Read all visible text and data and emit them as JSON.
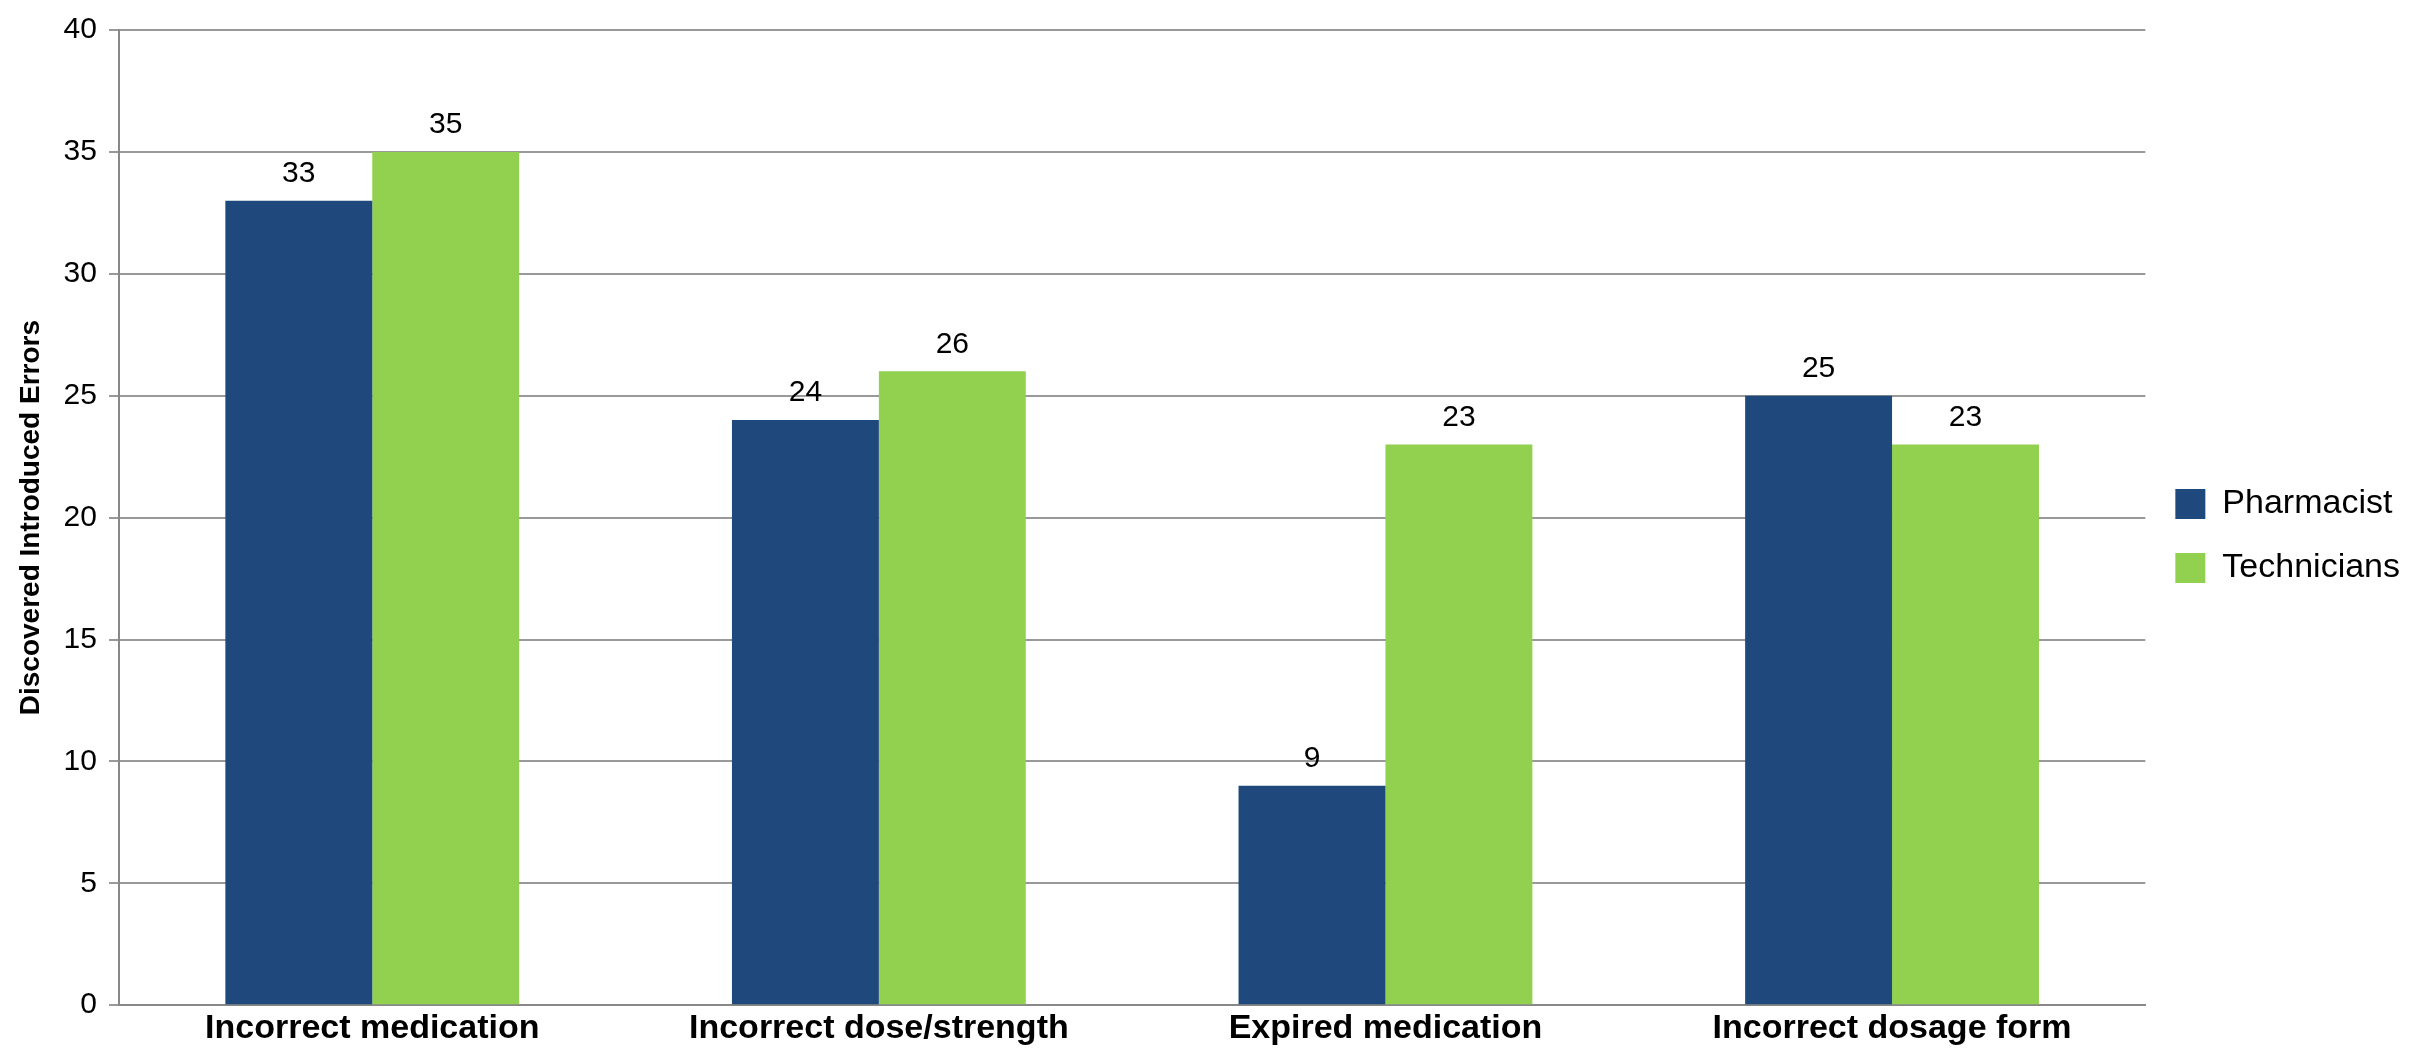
{
  "chart_data": {
    "type": "bar",
    "ylabel": "Discovered Introduced Errors",
    "categories": [
      "Incorrect medication",
      "Incorrect dose/strength",
      "Expired medication",
      "Incorrect dosage form"
    ],
    "series": [
      {
        "name": "Pharmacist",
        "color": "#1f497d",
        "values": [
          33,
          24,
          9,
          25
        ]
      },
      {
        "name": "Technicians",
        "color": "#92d050",
        "values": [
          35,
          26,
          23,
          23
        ]
      }
    ],
    "ylim": [
      0,
      40
    ],
    "yticks": [
      0,
      5,
      10,
      15,
      20,
      25,
      30,
      35,
      40
    ],
    "grid": "y",
    "legend": "right",
    "data_labels": true
  }
}
